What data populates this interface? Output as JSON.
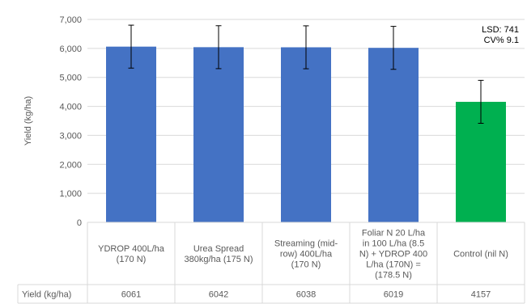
{
  "chart_data": {
    "type": "bar",
    "ylabel": "Yield (kg/ha)",
    "ylim": [
      0,
      7000
    ],
    "yticks": [
      "0",
      "1,000",
      "2,000",
      "3,000",
      "4,000",
      "5,000",
      "6,000",
      "7,000"
    ],
    "grid": true,
    "categories": [
      [
        "YDROP 400L/ha",
        "(170 N)"
      ],
      [
        "Urea Spread",
        "380kg/ha (175 N)"
      ],
      [
        "Streaming (mid-",
        "row) 400L/ha",
        "(170 N)"
      ],
      [
        "Foliar N 20 L/ha",
        "in 100 L/ha (8.5",
        "N) + YDROP 400",
        "L/ha (170N) =",
        "(178.5 N)"
      ],
      [
        "Control (nil N)"
      ]
    ],
    "values": [
      6061,
      6042,
      6038,
      6019,
      4157
    ],
    "error_bar": 741,
    "colors": [
      "#4472C4",
      "#4472C4",
      "#4472C4",
      "#4472C4",
      "#00B050"
    ],
    "annotations": [
      "LSD: 741",
      "CV% 9.1"
    ],
    "table": {
      "row_label": "Yield (kg/ha)",
      "values": [
        "6061",
        "6042",
        "6038",
        "6019",
        "4157"
      ]
    }
  }
}
